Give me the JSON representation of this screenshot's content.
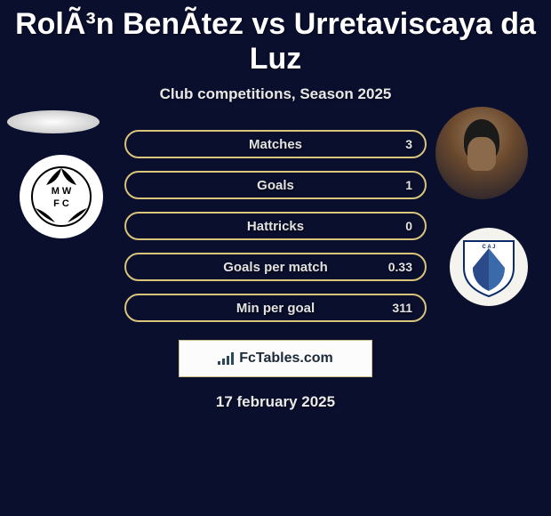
{
  "title": "RolÃ³n BenÃ­tez vs Urretaviscaya da Luz",
  "subtitle": "Club competitions, Season 2025",
  "rows": [
    {
      "left": "",
      "label": "Matches",
      "right": "3"
    },
    {
      "left": "",
      "label": "Goals",
      "right": "1"
    },
    {
      "left": "",
      "label": "Hattricks",
      "right": "0"
    },
    {
      "left": "",
      "label": "Goals per match",
      "right": "0.33"
    },
    {
      "left": "",
      "label": "Min per goal",
      "right": "311"
    }
  ],
  "site_label": "FcTables.com",
  "date_label": "17 february 2025",
  "colors": {
    "bg": "#0a0f2e",
    "pill_border": "#d8c47a",
    "text": "#e2e2e2",
    "muted": "#a8a8a8"
  },
  "left_badge": {
    "name": "club-badge-montevideo-wanderers",
    "letters_top": "M W",
    "letters_bottom": "F C"
  },
  "right_badge": {
    "name": "club-badge-juventud",
    "letters": "C A J"
  }
}
